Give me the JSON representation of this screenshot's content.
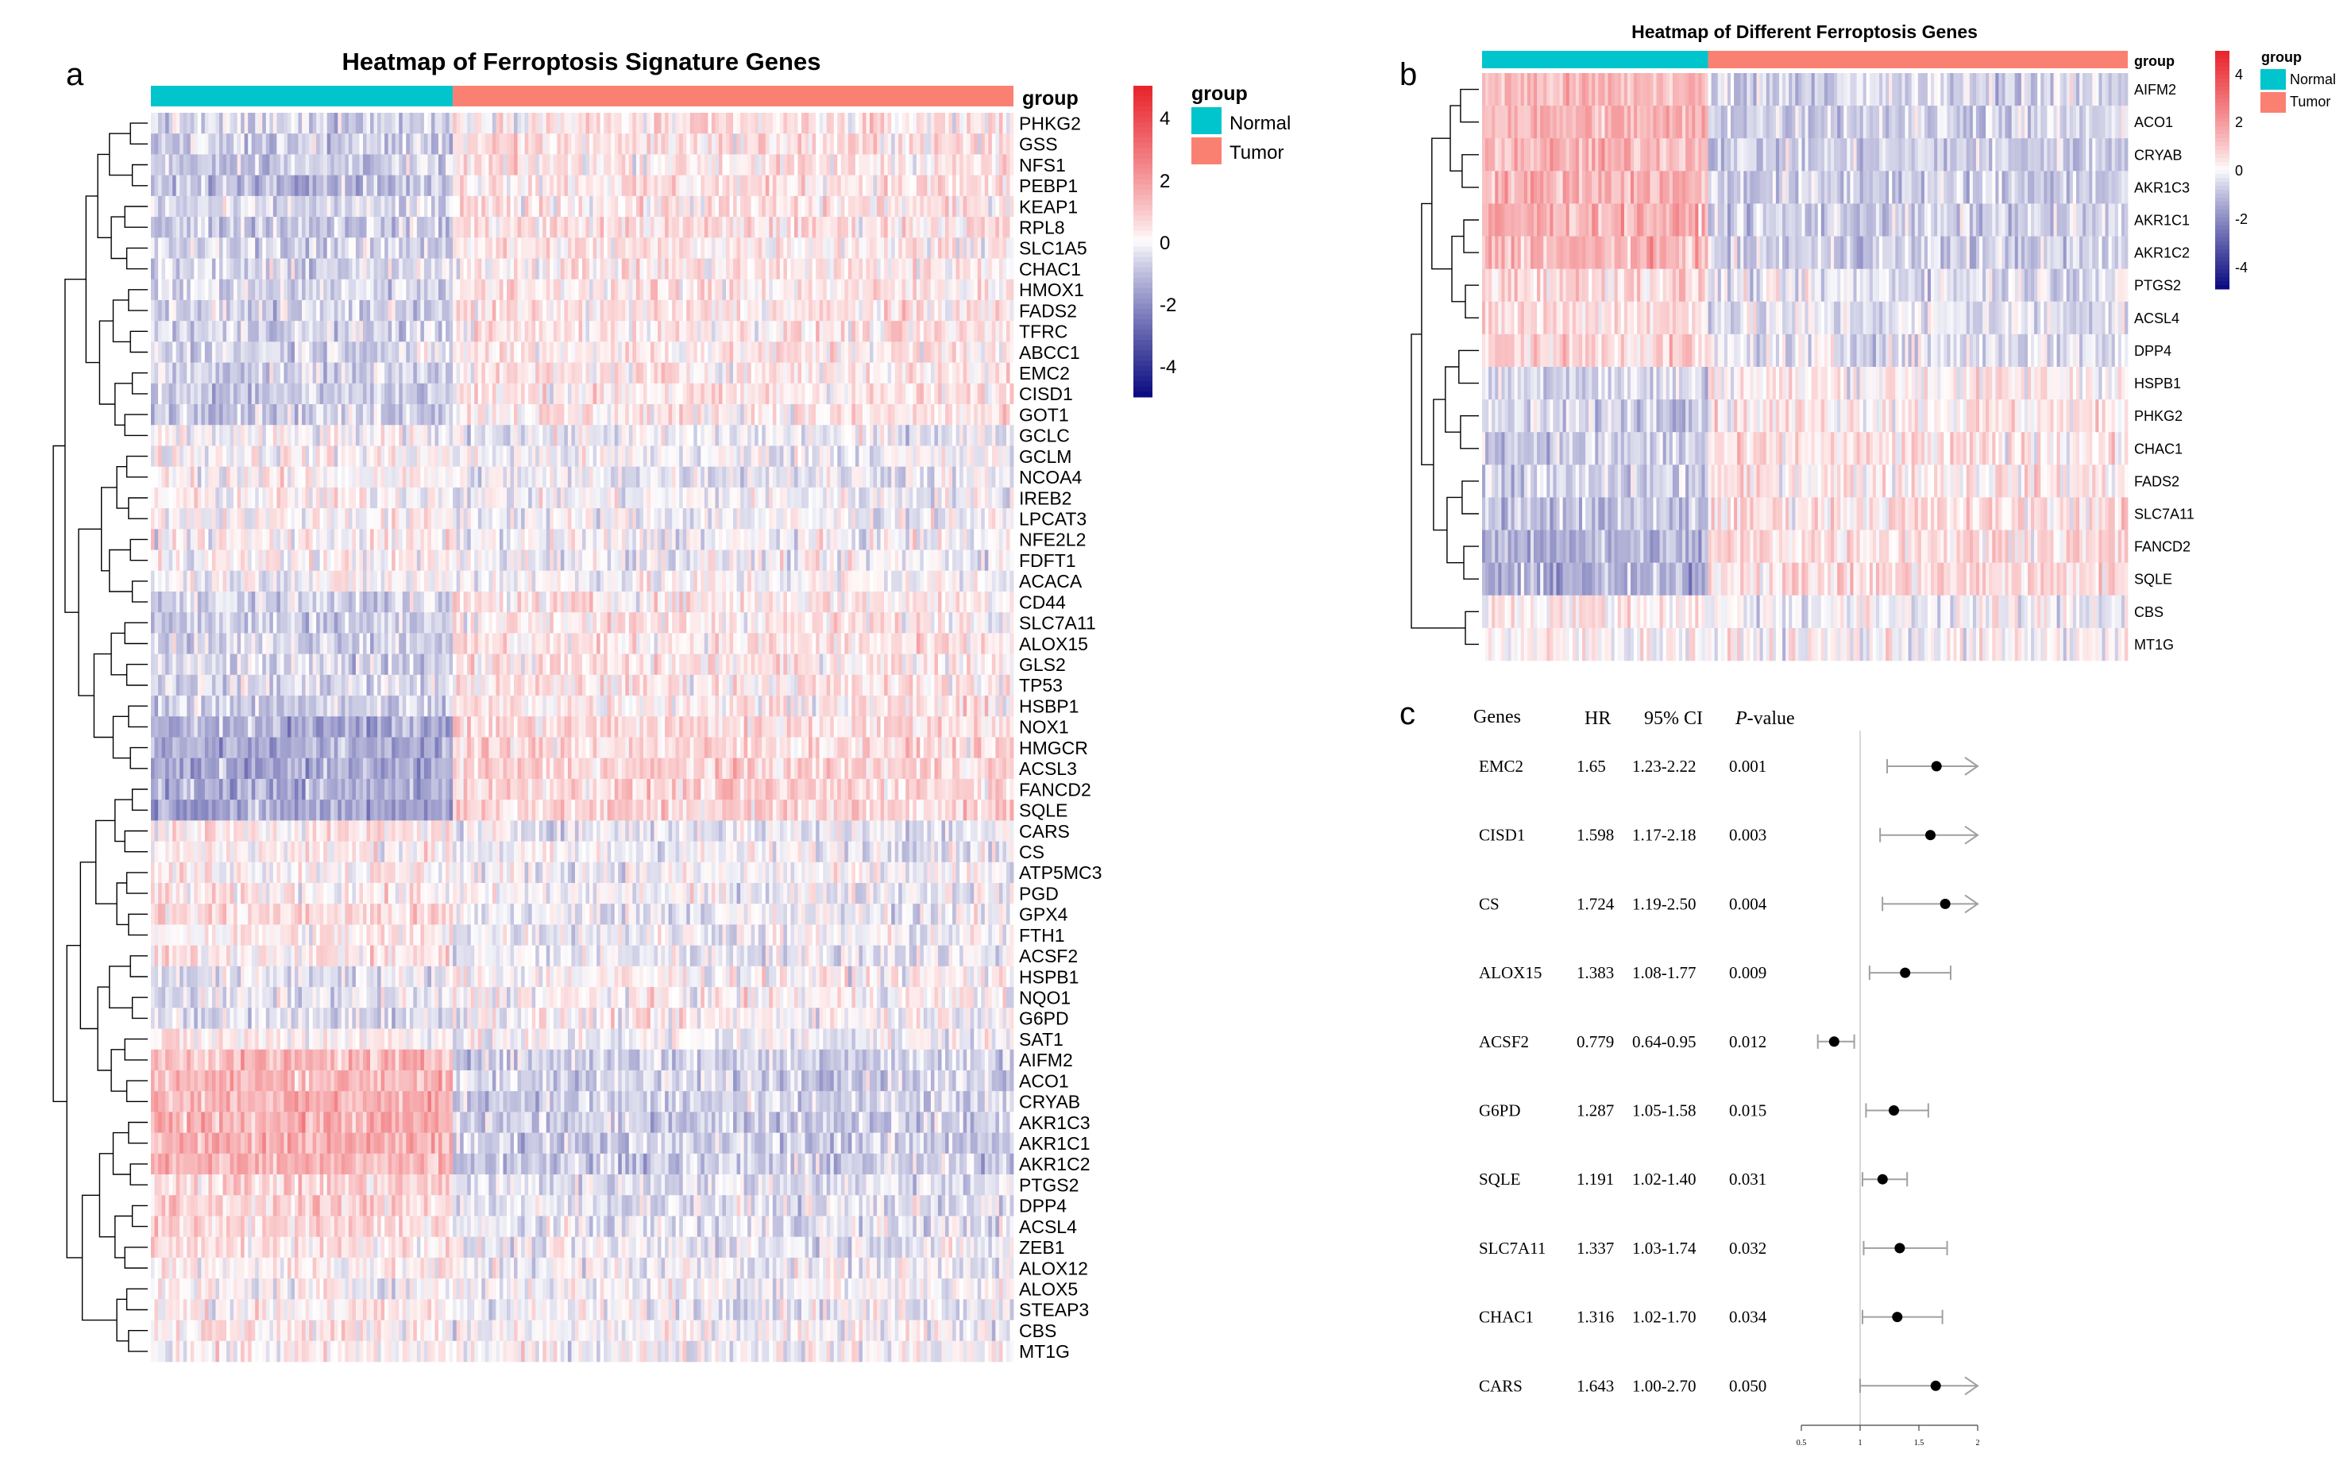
{
  "panels": {
    "a": {
      "letter": "a",
      "chart_data": {
        "type": "heatmap",
        "title": "Heatmap of Ferroptosis Signature Genes",
        "annotation_title": "group",
        "legend_title": "group",
        "legend_labels": [
          "Normal",
          "Tumor"
        ],
        "colorbar_ticks": [
          "4",
          "2",
          "0",
          "-2",
          "-4"
        ],
        "group_split": 0.35,
        "genes": [
          "PHKG2",
          "GSS",
          "NFS1",
          "PEBP1",
          "KEAP1",
          "RPL8",
          "SLC1A5",
          "CHAC1",
          "HMOX1",
          "FADS2",
          "TFRC",
          "ABCC1",
          "EMC2",
          "CISD1",
          "GOT1",
          "GCLC",
          "GCLM",
          "NCOA4",
          "IREB2",
          "LPCAT3",
          "NFE2L2",
          "FDFT1",
          "ACACA",
          "CD44",
          "SLC7A11",
          "ALOX15",
          "GLS2",
          "TP53",
          "HSBP1",
          "NOX1",
          "HMGCR",
          "ACSL3",
          "FANCD2",
          "SQLE",
          "CARS",
          "CS",
          "ATP5MC3",
          "PGD",
          "GPX4",
          "FTH1",
          "ACSF2",
          "HSPB1",
          "NQO1",
          "G6PD",
          "SAT1",
          "AIFM2",
          "ACO1",
          "CRYAB",
          "AKR1C3",
          "AKR1C1",
          "AKR1C2",
          "PTGS2",
          "DPP4",
          "ACSL4",
          "ZEB1",
          "ALOX12",
          "ALOX5",
          "STEAP3",
          "CBS",
          "MT1G"
        ],
        "normal_mean": [
          -0.5,
          -0.6,
          -0.6,
          -0.8,
          -0.5,
          -0.6,
          -0.5,
          -0.5,
          -0.4,
          -0.5,
          -0.5,
          -0.4,
          -0.5,
          -0.6,
          -0.5,
          -0.1,
          0.1,
          0.1,
          0.1,
          0.1,
          0.1,
          0.1,
          0.0,
          -0.5,
          -0.6,
          -0.4,
          -0.5,
          -0.4,
          -0.6,
          -1.1,
          -1.1,
          -1.2,
          -1.1,
          -1.2,
          0.3,
          0.2,
          0.2,
          0.2,
          0.5,
          0.2,
          0.3,
          -0.3,
          -0.3,
          -0.4,
          0.2,
          1.0,
          1.1,
          1.2,
          1.2,
          1.2,
          1.1,
          0.6,
          0.6,
          0.5,
          0.4,
          0.2,
          0.0,
          0.2,
          0.3,
          0.1
        ],
        "tumor_mean": [
          0.3,
          0.4,
          0.3,
          0.4,
          0.3,
          0.4,
          0.3,
          0.3,
          0.3,
          0.3,
          0.3,
          0.3,
          0.3,
          0.3,
          0.3,
          -0.2,
          -0.1,
          -0.2,
          -0.1,
          -0.1,
          -0.1,
          -0.1,
          0.0,
          0.3,
          0.3,
          0.3,
          0.3,
          0.3,
          0.3,
          0.5,
          0.5,
          0.6,
          0.6,
          0.6,
          -0.2,
          -0.1,
          -0.1,
          -0.1,
          -0.2,
          -0.1,
          -0.2,
          0.1,
          0.1,
          0.1,
          -0.1,
          -0.5,
          -0.5,
          -0.6,
          -0.6,
          -0.6,
          -0.6,
          -0.3,
          -0.3,
          -0.3,
          -0.2,
          -0.1,
          0.0,
          -0.1,
          -0.1,
          0.0
        ]
      }
    },
    "b": {
      "letter": "b",
      "chart_data": {
        "type": "heatmap",
        "title": "Heatmap of Different Ferroptosis Genes",
        "annotation_title": "group",
        "legend_title": "group",
        "legend_labels": [
          "Normal",
          "Tumor"
        ],
        "colorbar_ticks": [
          "4",
          "2",
          "0",
          "-2",
          "-4"
        ],
        "group_split": 0.35,
        "genes": [
          "AIFM2",
          "ACO1",
          "CRYAB",
          "AKR1C3",
          "AKR1C1",
          "AKR1C2",
          "PTGS2",
          "ACSL4",
          "DPP4",
          "HSPB1",
          "PHKG2",
          "CHAC1",
          "FADS2",
          "SLC7A11",
          "FANCD2",
          "SQLE",
          "CBS",
          "MT1G"
        ],
        "normal_mean": [
          1.0,
          1.1,
          1.1,
          1.2,
          1.2,
          1.1,
          0.6,
          0.5,
          0.6,
          -0.4,
          -0.5,
          -0.6,
          -0.6,
          -0.8,
          -1.0,
          -1.1,
          0.3,
          0.1
        ],
        "tumor_mean": [
          -0.5,
          -0.5,
          -0.6,
          -0.6,
          -0.6,
          -0.6,
          -0.3,
          -0.3,
          -0.3,
          0.2,
          0.3,
          0.3,
          0.3,
          0.4,
          0.5,
          0.5,
          -0.1,
          0.0
        ]
      }
    },
    "c": {
      "letter": "c",
      "chart_data": {
        "type": "forest",
        "header": {
          "genes": "Genes",
          "hr": "HR",
          "ci": "95% CI",
          "p": "P",
          "p_suffix": "-value"
        },
        "rows": [
          {
            "gene": "EMC2",
            "hr_text": "1.65",
            "ci_text": "1.23-2.22",
            "p_text": "0.001",
            "hr": 1.65,
            "lo": 1.23,
            "hi": 2.22
          },
          {
            "gene": "CISD1",
            "hr_text": "1.598",
            "ci_text": "1.17-2.18",
            "p_text": "0.003",
            "hr": 1.598,
            "lo": 1.17,
            "hi": 2.18
          },
          {
            "gene": "CS",
            "hr_text": "1.724",
            "ci_text": "1.19-2.50",
            "p_text": "0.004",
            "hr": 1.724,
            "lo": 1.19,
            "hi": 2.5
          },
          {
            "gene": "ALOX15",
            "hr_text": "1.383",
            "ci_text": "1.08-1.77",
            "p_text": "0.009",
            "hr": 1.383,
            "lo": 1.08,
            "hi": 1.77
          },
          {
            "gene": "ACSF2",
            "hr_text": "0.779",
            "ci_text": "0.64-0.95",
            "p_text": "0.012",
            "hr": 0.779,
            "lo": 0.64,
            "hi": 0.95
          },
          {
            "gene": "G6PD",
            "hr_text": "1.287",
            "ci_text": "1.05-1.58",
            "p_text": "0.015",
            "hr": 1.287,
            "lo": 1.05,
            "hi": 1.58
          },
          {
            "gene": "SQLE",
            "hr_text": "1.191",
            "ci_text": "1.02-1.40",
            "p_text": "0.031",
            "hr": 1.191,
            "lo": 1.02,
            "hi": 1.4
          },
          {
            "gene": "SLC7A11",
            "hr_text": "1.337",
            "ci_text": "1.03-1.74",
            "p_text": "0.032",
            "hr": 1.337,
            "lo": 1.03,
            "hi": 1.74
          },
          {
            "gene": "CHAC1",
            "hr_text": "1.316",
            "ci_text": "1.02-1.70",
            "p_text": "0.034",
            "hr": 1.316,
            "lo": 1.02,
            "hi": 1.7
          },
          {
            "gene": "CARS",
            "hr_text": "1.643",
            "ci_text": "1.00-2.70",
            "p_text": "0.050",
            "hr": 1.643,
            "lo": 1.0,
            "hi": 2.7
          }
        ],
        "xlim": [
          0.5,
          2
        ],
        "xticks": [
          0.5,
          1,
          1.5,
          2
        ],
        "xtick_labels": [
          "0.5",
          "1",
          "1.5",
          "2"
        ],
        "reference_line": 1
      }
    }
  },
  "colors": {
    "normal": "#00C5CD",
    "tumor": "#FA8072",
    "high": "#E8232A",
    "mid": "#FFFFFF",
    "low": "#0A0A80",
    "point": "#000000",
    "ci_line": "#A0A0A0"
  }
}
